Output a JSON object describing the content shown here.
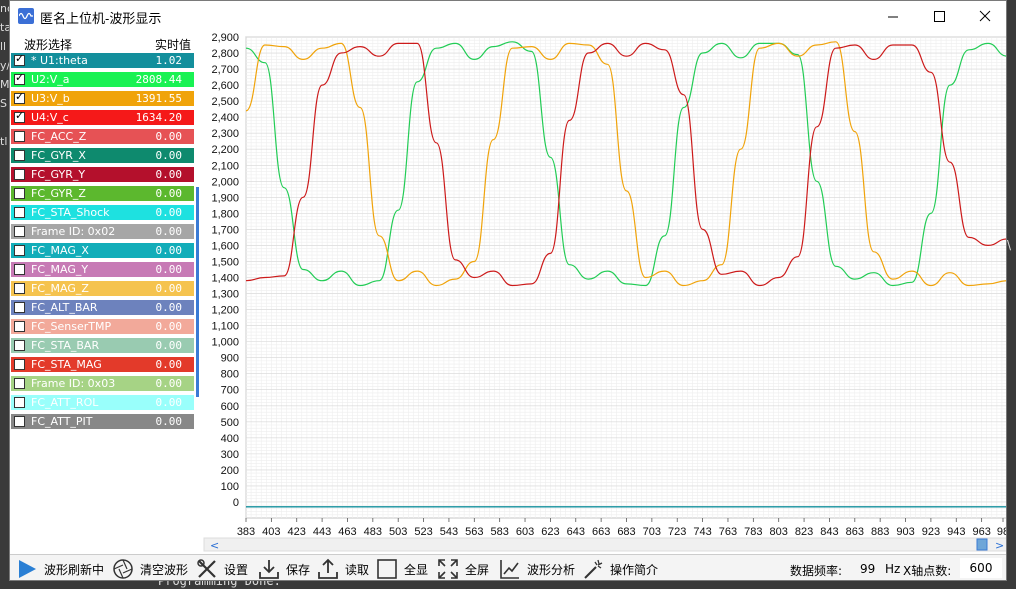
{
  "window": {
    "title": "匿名上位机-波形显示",
    "minimize": "—",
    "maximize": "☐",
    "close": "✕"
  },
  "background": {
    "left_chars": [
      "nc",
      "ta",
      "ll",
      "y/",
      "M",
      "S",
      "",
      "tl"
    ],
    "right_char": "\\",
    "bottom_text": "Programming Done."
  },
  "panel": {
    "header_select": "波形选择",
    "header_value": "实时值"
  },
  "channels": [
    {
      "name": "* U1:theta",
      "value": "1.02",
      "checked": true,
      "color": "#138f9c",
      "text": "#ffffff"
    },
    {
      "name": "U2:V_a",
      "value": "2808.44",
      "checked": true,
      "color": "#19f253",
      "text": "#ffffff"
    },
    {
      "name": "U3:V_b",
      "value": "1391.55",
      "checked": true,
      "color": "#f0a30a",
      "text": "#ffffff"
    },
    {
      "name": "U4:V_c",
      "value": "1634.20",
      "checked": true,
      "color": "#f51919",
      "text": "#ffffff"
    },
    {
      "name": "FC_ACC_Z",
      "value": "0.00",
      "checked": false,
      "color": "#e65255",
      "text": "#ffffff"
    },
    {
      "name": "FC_GYR_X",
      "value": "0.00",
      "checked": false,
      "color": "#0e8a6e",
      "text": "#ffffff"
    },
    {
      "name": "FC_GYR_Y",
      "value": "0.00",
      "checked": false,
      "color": "#b4102c",
      "text": "#ffffff"
    },
    {
      "name": "FC_GYR_Z",
      "value": "0.00",
      "checked": false,
      "color": "#5cb82e",
      "text": "#ffffff"
    },
    {
      "name": "FC_STA_Shock",
      "value": "0.00",
      "checked": false,
      "color": "#1ee1e0",
      "text": "#ffffff"
    },
    {
      "name": "Frame ID: 0x02",
      "value": "0.00",
      "checked": false,
      "color": "#a6a6a6",
      "text": "#ffffff"
    },
    {
      "name": "FC_MAG_X",
      "value": "0.00",
      "checked": false,
      "color": "#12adb9",
      "text": "#ffffff"
    },
    {
      "name": "FC_MAG_Y",
      "value": "0.00",
      "checked": false,
      "color": "#c77ab5",
      "text": "#ffffff"
    },
    {
      "name": "FC_MAG_Z",
      "value": "0.00",
      "checked": false,
      "color": "#f5c34e",
      "text": "#ffffff"
    },
    {
      "name": "FC_ALT_BAR",
      "value": "0.00",
      "checked": false,
      "color": "#6d82bd",
      "text": "#ffffff"
    },
    {
      "name": "FC_SenserTMP",
      "value": "0.00",
      "checked": false,
      "color": "#f2a99a",
      "text": "#ffffff"
    },
    {
      "name": "FC_STA_BAR",
      "value": "0.00",
      "checked": false,
      "color": "#99cbb1",
      "text": "#ffffff"
    },
    {
      "name": "FC_STA_MAG",
      "value": "0.00",
      "checked": false,
      "color": "#e33a2a",
      "text": "#ffffff"
    },
    {
      "name": "Frame ID: 0x03",
      "value": "0.00",
      "checked": false,
      "color": "#a6d385",
      "text": "#ffffff"
    },
    {
      "name": "FC_ATT_ROL",
      "value": "0.00",
      "checked": false,
      "color": "#99fffb",
      "text": "#ffffff"
    },
    {
      "name": "FC_ATT_PIT",
      "value": "0.00",
      "checked": false,
      "color": "#888888",
      "text": "#ffffff"
    }
  ],
  "toolbar": {
    "refresh": "波形刷新中",
    "clear": "清空波形",
    "settings": "设置",
    "save": "保存",
    "load": "读取",
    "fit": "全显",
    "fullscreen": "全屏",
    "analysis": "波形分析",
    "help": "操作简介",
    "freq_label": "数据频率:",
    "freq_value": "99",
    "freq_unit": "Hz",
    "xaxis_label": "X轴点数:",
    "xaxis_value": "600"
  },
  "chart_data": {
    "type": "line",
    "xlim": [
      383,
      983
    ],
    "ylim": [
      -100,
      2900
    ],
    "y_ticks": [
      "2,900",
      "2,800",
      "2,700",
      "2,600",
      "2,500",
      "2,400",
      "2,300",
      "2,200",
      "2,100",
      "2,000",
      "1,900",
      "1,800",
      "1,700",
      "1,600",
      "1,500",
      "1,400",
      "1,300",
      "1,200",
      "1,100",
      "1,000",
      "900",
      "800",
      "700",
      "600",
      "500",
      "400",
      "300",
      "200",
      "100",
      "0"
    ],
    "x_ticks": [
      "383",
      "403",
      "423",
      "443",
      "463",
      "483",
      "503",
      "523",
      "543",
      "563",
      "583",
      "603",
      "623",
      "643",
      "663",
      "683",
      "703",
      "723",
      "743",
      "763",
      "783",
      "803",
      "823",
      "843",
      "863",
      "883",
      "903",
      "923",
      "943",
      "963",
      "98"
    ],
    "grid": true,
    "baseline_value": -30,
    "series": [
      {
        "key": "U2",
        "color": "#22cc55",
        "values": [
          2830,
          2740,
          1960,
          1450,
          1380,
          1440,
          1350,
          1380,
          1820,
          2620,
          2830,
          2860,
          2760,
          2840,
          2870,
          2810,
          2150,
          1480,
          1390,
          1440,
          1360,
          1350,
          1660,
          2460,
          2800,
          2860,
          2770,
          2860,
          2860,
          2790,
          2000,
          1470,
          1390,
          1430,
          1350,
          1370,
          1800,
          2600,
          2820,
          2860,
          2780
        ]
      },
      {
        "key": "U3",
        "color": "#f0a30a",
        "values": [
          2440,
          2850,
          2840,
          2760,
          2830,
          2860,
          2460,
          1660,
          1380,
          1440,
          1350,
          1390,
          1500,
          2260,
          2830,
          2840,
          2760,
          2860,
          2850,
          2730,
          1940,
          1400,
          1440,
          1350,
          1380,
          1480,
          2200,
          2830,
          2860,
          2780,
          2850,
          2870,
          2310,
          1560,
          1390,
          1440,
          1350,
          1430,
          1350,
          1360,
          1380
        ]
      },
      {
        "key": "U4",
        "color": "#cc1a1a",
        "values": [
          1380,
          1400,
          1410,
          1900,
          2600,
          2800,
          2840,
          2780,
          2860,
          2860,
          2240,
          1510,
          1400,
          1440,
          1350,
          1360,
          1550,
          2380,
          2800,
          2860,
          2780,
          2860,
          2820,
          2540,
          1700,
          1420,
          1440,
          1350,
          1400,
          1530,
          2340,
          2830,
          2850,
          2760,
          2850,
          2850,
          2680,
          2120,
          1650,
          1600,
          1640
        ]
      }
    ]
  }
}
